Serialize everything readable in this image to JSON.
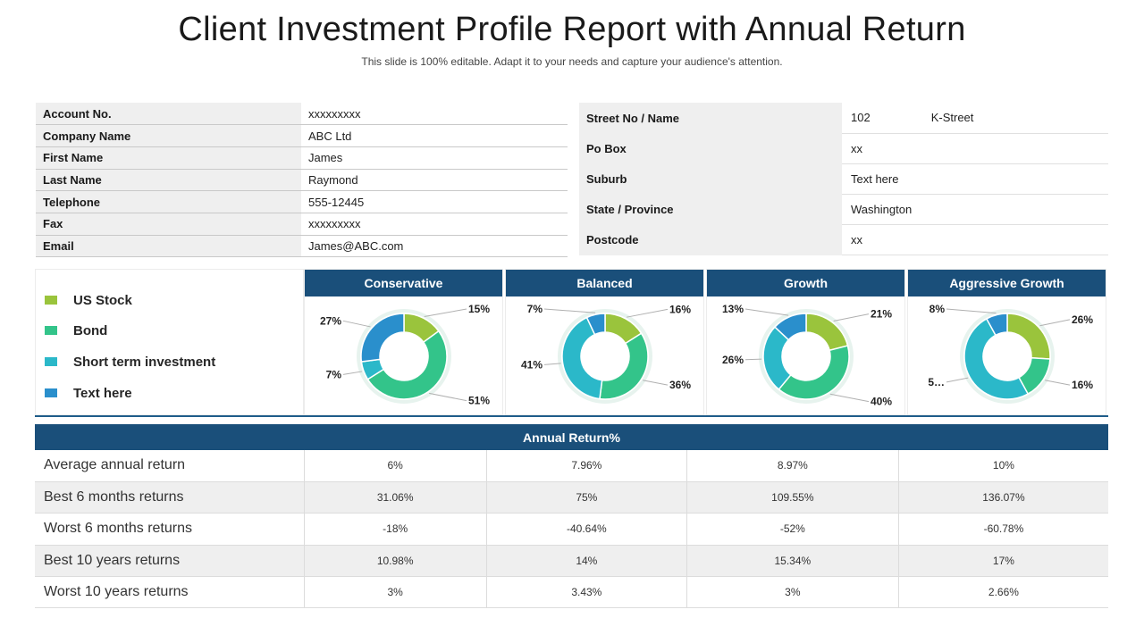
{
  "header": {
    "title": "Client Investment Profile Report with Annual Return",
    "subtitle": "This slide is 100% editable. Adapt it to your needs and capture your audience's attention."
  },
  "account": [
    {
      "label": "Account No.",
      "value": "xxxxxxxxx"
    },
    {
      "label": "Company Name",
      "value": "ABC Ltd"
    },
    {
      "label": "First Name",
      "value": "James"
    },
    {
      "label": "Last Name",
      "value": "Raymond"
    },
    {
      "label": "Telephone",
      "value": "555-12445"
    },
    {
      "label": "Fax",
      "value": "xxxxxxxxx"
    },
    {
      "label": "Email",
      "value": "James@ABC.com"
    }
  ],
  "address": [
    {
      "label": "Street No / Name",
      "value": "102",
      "value2": "K-Street"
    },
    {
      "label": "Po Box",
      "value": "xx",
      "value2": ""
    },
    {
      "label": "Suburb",
      "value": "Text here",
      "value2": ""
    },
    {
      "label": "State / Province",
      "value": "Washington",
      "value2": ""
    },
    {
      "label": "Postcode",
      "value": "xx",
      "value2": ""
    }
  ],
  "colors": {
    "us_stock": "#9ac43c",
    "bond": "#33c48a",
    "short_term": "#2bb8c9",
    "text_here": "#2a8fcc",
    "header_blue": "#1a4f7a"
  },
  "legend": [
    {
      "label": "US Stock",
      "color": "#9ac43c"
    },
    {
      "label": "Bond",
      "color": "#33c48a"
    },
    {
      "label": "Short term investment",
      "color": "#2bb8c9"
    },
    {
      "label": "Text here",
      "color": "#2a8fcc"
    }
  ],
  "chart_data": [
    {
      "type": "pie",
      "title": "Conservative",
      "categories": [
        "US Stock",
        "Bond",
        "Short term investment",
        "Text here"
      ],
      "values": [
        15,
        51,
        7,
        27
      ],
      "labels": [
        "15%",
        "51%",
        "7%",
        "27%"
      ]
    },
    {
      "type": "pie",
      "title": "Balanced",
      "categories": [
        "US Stock",
        "Bond",
        "Short term investment",
        "Text here"
      ],
      "values": [
        16,
        36,
        41,
        7
      ],
      "labels": [
        "16%",
        "36%",
        "41%",
        "7%"
      ]
    },
    {
      "type": "pie",
      "title": "Growth",
      "categories": [
        "US Stock",
        "Bond",
        "Short term investment",
        "Text here"
      ],
      "values": [
        21,
        40,
        26,
        13
      ],
      "labels": [
        "21%",
        "40%",
        "26%",
        "13%"
      ]
    },
    {
      "type": "pie",
      "title": "Aggressive Growth",
      "categories": [
        "US Stock",
        "Bond",
        "Short term investment",
        "Text here"
      ],
      "values": [
        26,
        16,
        50,
        8
      ],
      "labels": [
        "26%",
        "16%",
        "5…",
        "8%"
      ]
    }
  ],
  "returns": {
    "title": "Annual Return%",
    "rows": [
      {
        "label": "Average annual return",
        "values": [
          "6%",
          "7.96%",
          "8.97%",
          "10%"
        ]
      },
      {
        "label": "Best 6 months returns",
        "values": [
          "31.06%",
          "75%",
          "109.55%",
          "136.07%"
        ]
      },
      {
        "label": "Worst 6 months returns",
        "values": [
          "-18%",
          "-40.64%",
          "-52%",
          "-60.78%"
        ]
      },
      {
        "label": "Best 10 years returns",
        "values": [
          "10.98%",
          "14%",
          "15.34%",
          "17%"
        ]
      },
      {
        "label": "Worst 10 years returns",
        "values": [
          "3%",
          "3.43%",
          "3%",
          "2.66%"
        ]
      }
    ]
  }
}
